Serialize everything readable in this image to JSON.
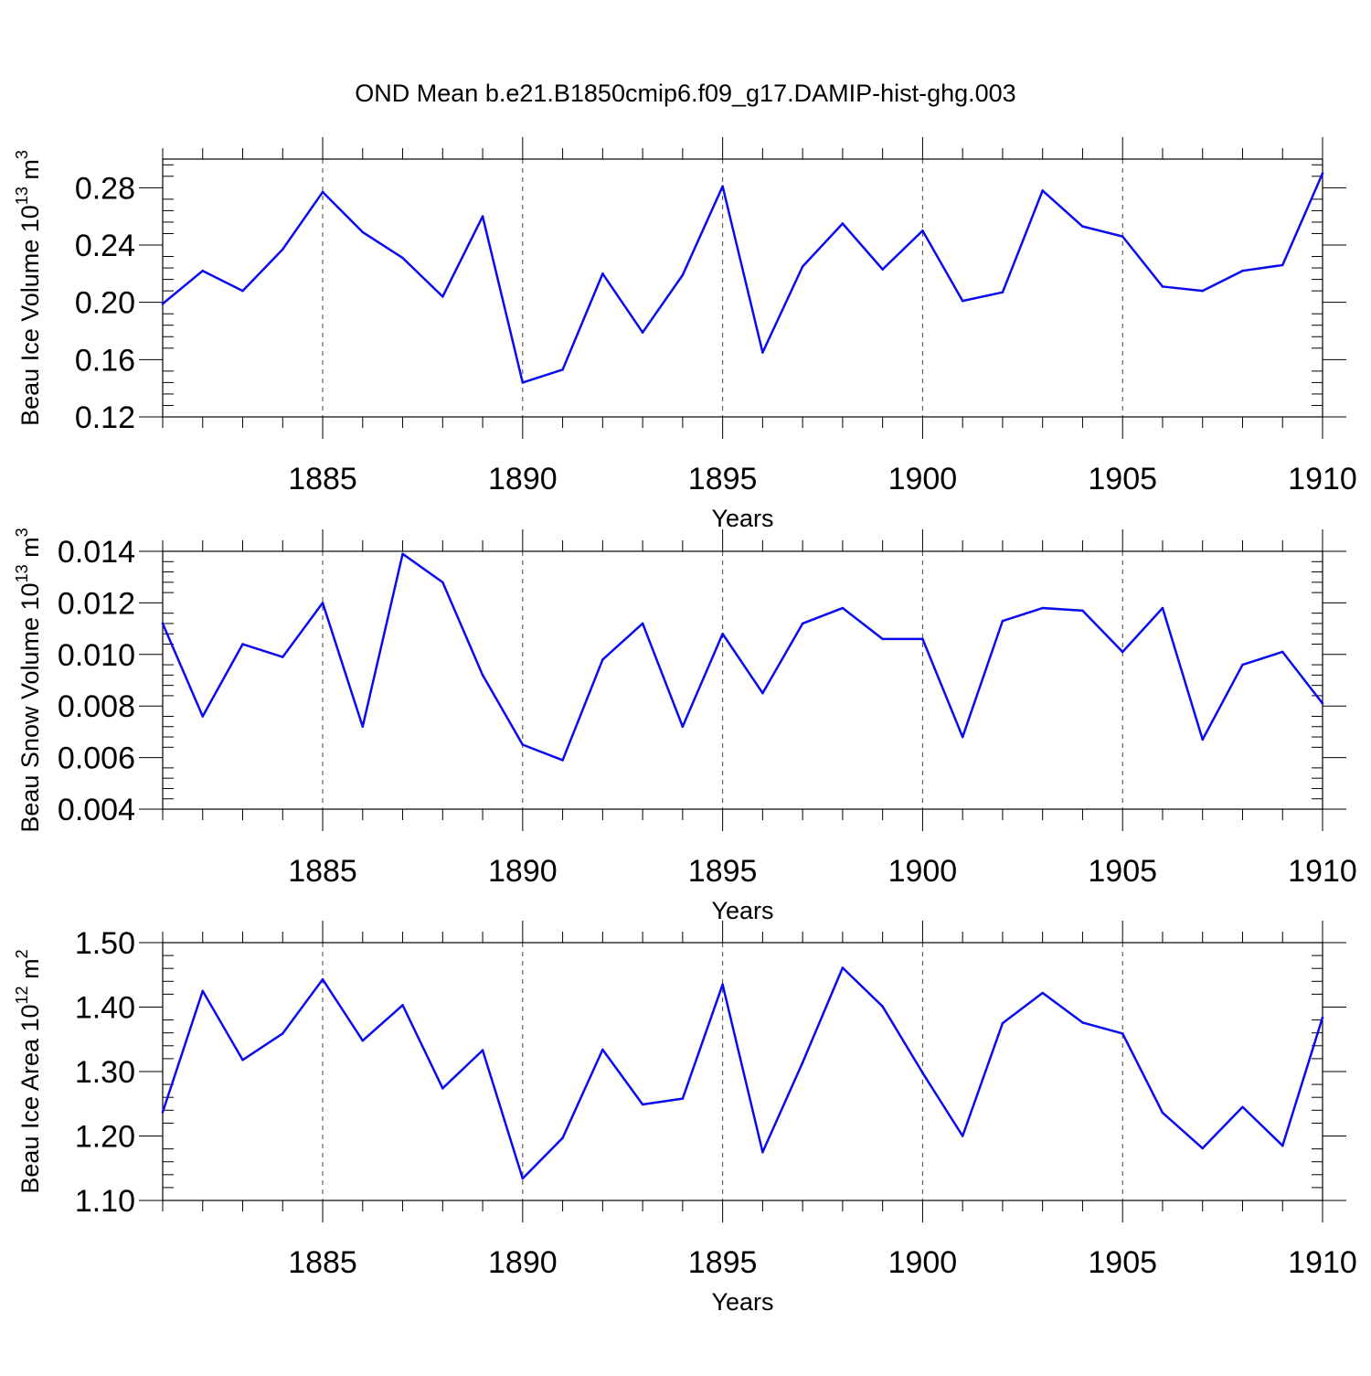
{
  "title": "OND Mean b.e21.B1850cmip6.f09_g17.DAMIP-hist-ghg.003",
  "colors": {
    "line": "#0a0af0",
    "axis": "#000000",
    "grid": "#444444"
  },
  "chart_data": [
    {
      "type": "line",
      "xlabel": "Years",
      "ylabel": {
        "base": "Beau Ice Volume 10",
        "exp": "13",
        "unit": " m",
        "unitexp": "3"
      },
      "xlim": [
        1881,
        1910
      ],
      "ylim": [
        0.12,
        0.3
      ],
      "xticks": [
        1885,
        1890,
        1895,
        1900,
        1905,
        1910
      ],
      "xtick_labels": [
        "1885",
        "1890",
        "1895",
        "1900",
        "1905",
        "1910"
      ],
      "yticks": [
        0.12,
        0.16,
        0.2,
        0.24,
        0.28
      ],
      "ytick_labels": [
        "0.12",
        "0.16",
        "0.20",
        "0.24",
        "0.28"
      ],
      "grid": "vertical dashed at major x ticks",
      "x": [
        1881,
        1882,
        1883,
        1884,
        1885,
        1886,
        1887,
        1888,
        1889,
        1890,
        1891,
        1892,
        1893,
        1894,
        1895,
        1896,
        1897,
        1898,
        1899,
        1900,
        1901,
        1902,
        1903,
        1904,
        1905,
        1906,
        1907,
        1908,
        1909,
        1910
      ],
      "series": [
        {
          "values": [
            0.199,
            0.222,
            0.208,
            0.237,
            0.277,
            0.249,
            0.231,
            0.204,
            0.26,
            0.144,
            0.153,
            0.22,
            0.179,
            0.219,
            0.281,
            0.165,
            0.225,
            0.255,
            0.223,
            0.25,
            0.201,
            0.207,
            0.278,
            0.253,
            0.246,
            0.211,
            0.208,
            0.222,
            0.226,
            0.29
          ]
        }
      ]
    },
    {
      "type": "line",
      "xlabel": "Years",
      "ylabel": {
        "base": "Beau Snow Volume 10",
        "exp": "13",
        "unit": " m",
        "unitexp": "3"
      },
      "xlim": [
        1881,
        1910
      ],
      "ylim": [
        0.004,
        0.014
      ],
      "xticks": [
        1885,
        1890,
        1895,
        1900,
        1905,
        1910
      ],
      "xtick_labels": [
        "1885",
        "1890",
        "1895",
        "1900",
        "1905",
        "1910"
      ],
      "yticks": [
        0.004,
        0.006,
        0.008,
        0.01,
        0.012,
        0.014
      ],
      "ytick_labels": [
        "0.004",
        "0.006",
        "0.008",
        "0.010",
        "0.012",
        "0.014"
      ],
      "grid": "vertical dashed at major x ticks",
      "x": [
        1881,
        1882,
        1883,
        1884,
        1885,
        1886,
        1887,
        1888,
        1889,
        1890,
        1891,
        1892,
        1893,
        1894,
        1895,
        1896,
        1897,
        1898,
        1899,
        1900,
        1901,
        1902,
        1903,
        1904,
        1905,
        1906,
        1907,
        1908,
        1909,
        1910
      ],
      "series": [
        {
          "values": [
            0.0112,
            0.0076,
            0.0104,
            0.0099,
            0.012,
            0.0072,
            0.0139,
            0.0128,
            0.0092,
            0.0065,
            0.0059,
            0.0098,
            0.0112,
            0.0072,
            0.0108,
            0.0085,
            0.0112,
            0.0118,
            0.0106,
            0.0106,
            0.0068,
            0.0113,
            0.0118,
            0.0117,
            0.0101,
            0.0118,
            0.0067,
            0.0096,
            0.0101,
            0.0081
          ]
        }
      ]
    },
    {
      "type": "line",
      "xlabel": "Years",
      "ylabel": {
        "base": "Beau Ice Area 10",
        "exp": "12",
        "unit": " m",
        "unitexp": "2"
      },
      "xlim": [
        1881,
        1910
      ],
      "ylim": [
        1.1,
        1.5
      ],
      "xticks": [
        1885,
        1890,
        1895,
        1900,
        1905,
        1910
      ],
      "xtick_labels": [
        "1885",
        "1890",
        "1895",
        "1900",
        "1905",
        "1910"
      ],
      "yticks": [
        1.1,
        1.2,
        1.3,
        1.4,
        1.5
      ],
      "ytick_labels": [
        "1.10",
        "1.20",
        "1.30",
        "1.40",
        "1.50"
      ],
      "grid": "vertical dashed at major x ticks",
      "x": [
        1881,
        1882,
        1883,
        1884,
        1885,
        1886,
        1887,
        1888,
        1889,
        1890,
        1891,
        1892,
        1893,
        1894,
        1895,
        1896,
        1897,
        1898,
        1899,
        1900,
        1901,
        1902,
        1903,
        1904,
        1905,
        1906,
        1907,
        1908,
        1909,
        1910
      ],
      "series": [
        {
          "values": [
            1.237,
            1.425,
            1.318,
            1.359,
            1.443,
            1.348,
            1.403,
            1.274,
            1.333,
            1.134,
            1.197,
            1.334,
            1.249,
            1.258,
            1.435,
            1.175,
            1.314,
            1.461,
            1.401,
            1.298,
            1.2,
            1.375,
            1.422,
            1.376,
            1.359,
            1.236,
            1.181,
            1.245,
            1.185,
            1.384
          ]
        }
      ]
    }
  ]
}
